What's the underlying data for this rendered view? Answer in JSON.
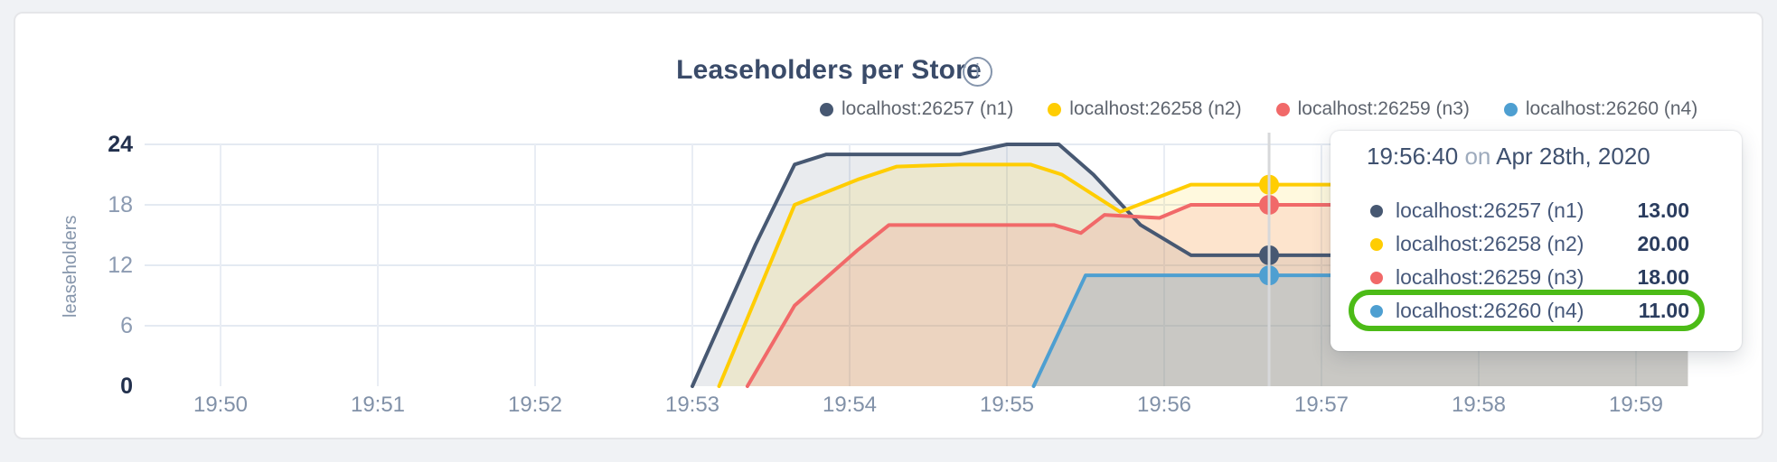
{
  "header": {
    "title": "Leaseholders per Store",
    "info_icon": "i"
  },
  "legend": {
    "items": [
      {
        "label": "localhost:26257 (n1)",
        "color": "#475872"
      },
      {
        "label": "localhost:26258 (n2)",
        "color": "#FFCD02"
      },
      {
        "label": "localhost:26259 (n3)",
        "color": "#F16969"
      },
      {
        "label": "localhost:26260 (n4)",
        "color": "#4E9FD1"
      }
    ]
  },
  "tooltip": {
    "time": "19:56:40",
    "separator": "on",
    "date": "Apr 28th, 2020",
    "rows": [
      {
        "label": "localhost:26257 (n1)",
        "value": "13.00",
        "color": "#475872",
        "highlighted": false
      },
      {
        "label": "localhost:26258 (n2)",
        "value": "20.00",
        "color": "#FFCD02",
        "highlighted": false
      },
      {
        "label": "localhost:26259 (n3)",
        "value": "18.00",
        "color": "#F16969",
        "highlighted": false
      },
      {
        "label": "localhost:26260 (n4)",
        "value": "11.00",
        "color": "#4E9FD1",
        "highlighted": true
      }
    ],
    "highlight_color": "#4CBB17"
  },
  "chart_data": {
    "type": "area",
    "title": "Leaseholders per Store",
    "xlabel": "",
    "ylabel": "leaseholders",
    "ylim": [
      0,
      24
    ],
    "y_ticks": [
      "0",
      "6",
      "12",
      "18",
      "24"
    ],
    "x_ticks": [
      "19:50",
      "19:51",
      "19:52",
      "19:53",
      "19:54",
      "19:55",
      "19:56",
      "19:57",
      "19:58",
      "19:59"
    ],
    "x_unit": "minutes after 19:50",
    "x_data_range": [
      0,
      9.33
    ],
    "grid": true,
    "legend_position": "top-right",
    "series": [
      {
        "name": "localhost:26257 (n1)",
        "color": "#475872",
        "fill_opacity": 0.12,
        "points": [
          [
            3.0,
            0
          ],
          [
            3.4,
            14
          ],
          [
            3.65,
            22
          ],
          [
            3.85,
            23
          ],
          [
            4.7,
            23
          ],
          [
            5.0,
            24
          ],
          [
            5.33,
            24
          ],
          [
            5.55,
            21
          ],
          [
            5.85,
            16
          ],
          [
            6.17,
            13
          ],
          [
            9.33,
            13
          ]
        ]
      },
      {
        "name": "localhost:26258 (n2)",
        "color": "#FFCD02",
        "fill_opacity": 0.13,
        "points": [
          [
            3.17,
            0
          ],
          [
            3.65,
            18
          ],
          [
            4.05,
            20.5
          ],
          [
            4.3,
            21.8
          ],
          [
            4.7,
            22
          ],
          [
            5.15,
            22
          ],
          [
            5.35,
            21
          ],
          [
            5.72,
            17.3
          ],
          [
            6.17,
            20
          ],
          [
            9.33,
            20
          ]
        ]
      },
      {
        "name": "localhost:26259 (n3)",
        "color": "#F16969",
        "fill_opacity": 0.15,
        "points": [
          [
            3.35,
            0
          ],
          [
            3.65,
            8
          ],
          [
            4.05,
            13.5
          ],
          [
            4.25,
            16
          ],
          [
            5.3,
            16
          ],
          [
            5.47,
            15.2
          ],
          [
            5.62,
            17
          ],
          [
            5.97,
            16.7
          ],
          [
            6.17,
            18
          ],
          [
            9.33,
            18
          ]
        ]
      },
      {
        "name": "localhost:26260 (n4)",
        "color": "#4E9FD1",
        "fill_opacity": 0.22,
        "points": [
          [
            5.17,
            0
          ],
          [
            5.5,
            11
          ],
          [
            9.33,
            11
          ]
        ]
      }
    ],
    "hover": {
      "time": "19:56:40",
      "date": "Apr 28th, 2020",
      "x_minutes_after_1950": 6.667,
      "values": [
        13,
        20,
        18,
        11
      ],
      "guideline_color": "#d7d8da"
    }
  }
}
